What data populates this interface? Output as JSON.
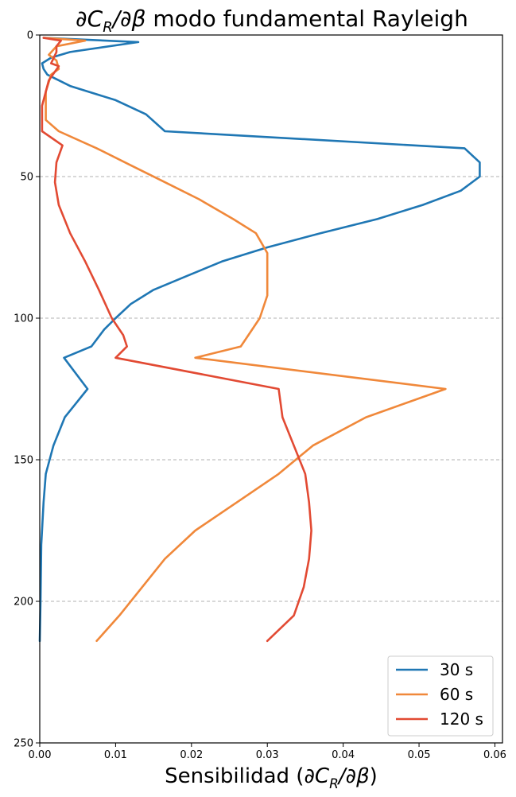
{
  "chart_data": {
    "type": "line",
    "title": "∂C_R/∂β modo fundamental Rayleigh",
    "xlabel": "Sensibilidad (∂C_R/∂β)",
    "ylabel": "",
    "xlim": [
      0.0,
      0.061
    ],
    "ylim": [
      250,
      0
    ],
    "y_inverted": true,
    "x_ticks": [
      0.0,
      0.01,
      0.02,
      0.03,
      0.04,
      0.05,
      0.06
    ],
    "x_tick_labels": [
      "0.00",
      "0.01",
      "0.02",
      "0.03",
      "0.04",
      "0.05",
      "0.06"
    ],
    "y_ticks": [
      0,
      50,
      100,
      150,
      200,
      250
    ],
    "y_tick_labels": [
      "0",
      "50",
      "100",
      "150",
      "200",
      "250"
    ],
    "grid": "horizontal dashed",
    "legend_position": "lower-right",
    "series": [
      {
        "name": "30 s",
        "color": "#1f77b4",
        "points": [
          [
            0.0005,
            1
          ],
          [
            0.013,
            2.5
          ],
          [
            0.004,
            6
          ],
          [
            0.0015,
            8
          ],
          [
            0.0003,
            10
          ],
          [
            0.0005,
            12
          ],
          [
            0.001,
            14
          ],
          [
            0.004,
            18
          ],
          [
            0.01,
            23
          ],
          [
            0.014,
            28
          ],
          [
            0.0165,
            34
          ],
          [
            0.056,
            40
          ],
          [
            0.058,
            45
          ],
          [
            0.058,
            50
          ],
          [
            0.0555,
            55
          ],
          [
            0.0505,
            60
          ],
          [
            0.0445,
            65
          ],
          [
            0.037,
            70
          ],
          [
            0.03,
            75
          ],
          [
            0.024,
            80
          ],
          [
            0.0195,
            85
          ],
          [
            0.015,
            90
          ],
          [
            0.012,
            95
          ],
          [
            0.01,
            100
          ],
          [
            0.0085,
            104
          ],
          [
            0.0068,
            110
          ],
          [
            0.0032,
            114
          ],
          [
            0.0063,
            125
          ],
          [
            0.0033,
            135
          ],
          [
            0.0018,
            145
          ],
          [
            0.0008,
            155
          ],
          [
            0.0005,
            165
          ],
          [
            0.0002,
            180
          ],
          [
            0.0001,
            200
          ],
          [
            0.0,
            214
          ]
        ]
      },
      {
        "name": "60 s",
        "color": "#f0883a",
        "points": [
          [
            0.0005,
            1
          ],
          [
            0.006,
            2
          ],
          [
            0.0022,
            4
          ],
          [
            0.0012,
            7
          ],
          [
            0.0022,
            9
          ],
          [
            0.0025,
            12
          ],
          [
            0.0015,
            14
          ],
          [
            0.0008,
            20
          ],
          [
            0.0008,
            30
          ],
          [
            0.0025,
            34
          ],
          [
            0.0075,
            40
          ],
          [
            0.012,
            46
          ],
          [
            0.0165,
            52
          ],
          [
            0.021,
            58
          ],
          [
            0.0255,
            65
          ],
          [
            0.0285,
            70
          ],
          [
            0.03,
            77
          ],
          [
            0.03,
            85
          ],
          [
            0.03,
            92
          ],
          [
            0.029,
            100
          ],
          [
            0.0275,
            106
          ],
          [
            0.0265,
            110
          ],
          [
            0.0205,
            114
          ],
          [
            0.0535,
            125
          ],
          [
            0.043,
            135
          ],
          [
            0.036,
            145
          ],
          [
            0.0315,
            155
          ],
          [
            0.026,
            165
          ],
          [
            0.0205,
            175
          ],
          [
            0.0165,
            185
          ],
          [
            0.0135,
            195
          ],
          [
            0.0105,
            205
          ],
          [
            0.0075,
            214
          ]
        ]
      },
      {
        "name": "120 s",
        "color": "#e24a33",
        "points": [
          [
            0.0005,
            1
          ],
          [
            0.0028,
            2
          ],
          [
            0.0022,
            4
          ],
          [
            0.0022,
            6
          ],
          [
            0.0015,
            10
          ],
          [
            0.0025,
            11
          ],
          [
            0.0012,
            16
          ],
          [
            0.0003,
            25
          ],
          [
            0.0003,
            34
          ],
          [
            0.003,
            39
          ],
          [
            0.0022,
            45
          ],
          [
            0.002,
            52
          ],
          [
            0.0025,
            60
          ],
          [
            0.004,
            70
          ],
          [
            0.006,
            80
          ],
          [
            0.0078,
            90
          ],
          [
            0.0095,
            100
          ],
          [
            0.011,
            106
          ],
          [
            0.0115,
            110
          ],
          [
            0.01,
            114
          ],
          [
            0.0315,
            125
          ],
          [
            0.032,
            135
          ],
          [
            0.0335,
            145
          ],
          [
            0.035,
            155
          ],
          [
            0.0355,
            165
          ],
          [
            0.0358,
            175
          ],
          [
            0.0355,
            185
          ],
          [
            0.0348,
            195
          ],
          [
            0.0335,
            205
          ],
          [
            0.03,
            214
          ]
        ]
      }
    ]
  }
}
